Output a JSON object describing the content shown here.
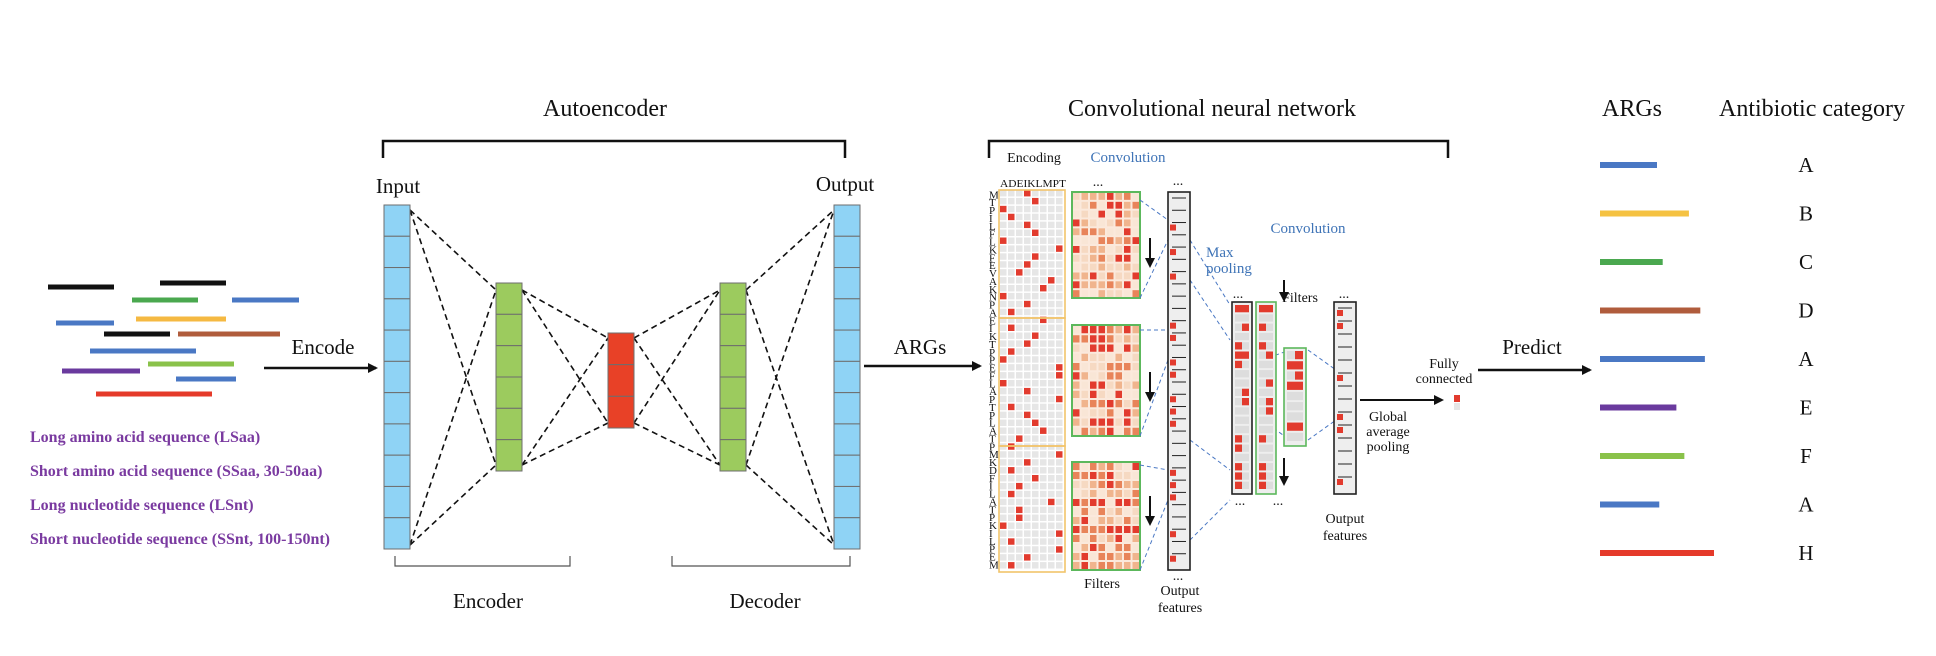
{
  "titles": {
    "autoencoder": "Autoencoder",
    "cnn": "Convolutional neural network",
    "args_header": "ARGs",
    "category_header": "Antibiotic category"
  },
  "autoencoder": {
    "input_label": "Input",
    "output_label": "Output",
    "encode_label": "Encode",
    "encoder_label": "Encoder",
    "decoder_label": "Decoder",
    "colors": {
      "io": "#8fd3f5",
      "hidden": "#9ccb5e",
      "bottleneck": "#e84127"
    }
  },
  "sequences": {
    "segment_colors": [
      "#111111",
      "#4aa84f",
      "#111111",
      "#4a78c4",
      "#f5b942",
      "#111111",
      "#b05c3c",
      "#4a78c4",
      "#8ac24a",
      "#6a3a9e",
      "#4a78c4",
      "#e53a2a"
    ],
    "types": [
      "Long amino acid sequence (LSaa)",
      "Short amino acid sequence (SSaa, 30-50aa)",
      "Long nucleotide sequence (LSnt)",
      "Short nucleotide sequence (SSnt, 100-150nt)"
    ]
  },
  "args_arrow_label": "ARGs",
  "cnn": {
    "encoding_label": "Encoding",
    "convolution_label": "Convolution",
    "convolution2_label": "Convolution",
    "aa_header": "ADEIKLMPT",
    "sequence_letters": "MTPILFLKFEVAKNPAEIKTPPEFLAPTPLATPMKDFILATPKILPEM",
    "filters_label": "Filters",
    "filters2_label": "Filters",
    "output_features_label": "Output features",
    "output_features2_label": "Output features",
    "max_pooling_label": "Max pooling",
    "gap_label": "Global average pooling",
    "fc_label": "Fully connected",
    "dots": "...",
    "colors": {
      "encoding_frame": "#f2c46b",
      "filter_frame": "#5cb85c",
      "active": "#e23b2e",
      "cell": "#e6e6e6"
    }
  },
  "predict_label": "Predict",
  "legend": [
    {
      "category": "A",
      "color": "#4a78c4",
      "length": 0.5
    },
    {
      "category": "B",
      "color": "#f5c242",
      "length": 0.78
    },
    {
      "category": "C",
      "color": "#4aa84f",
      "length": 0.55
    },
    {
      "category": "D",
      "color": "#b05c3c",
      "length": 0.88
    },
    {
      "category": "A",
      "color": "#4a78c4",
      "length": 0.92
    },
    {
      "category": "E",
      "color": "#6a3a9e",
      "length": 0.67
    },
    {
      "category": "F",
      "color": "#8ac24a",
      "length": 0.74
    },
    {
      "category": "A",
      "color": "#4a78c4",
      "length": 0.52
    },
    {
      "category": "H",
      "color": "#e53a2a",
      "length": 1.0
    }
  ]
}
